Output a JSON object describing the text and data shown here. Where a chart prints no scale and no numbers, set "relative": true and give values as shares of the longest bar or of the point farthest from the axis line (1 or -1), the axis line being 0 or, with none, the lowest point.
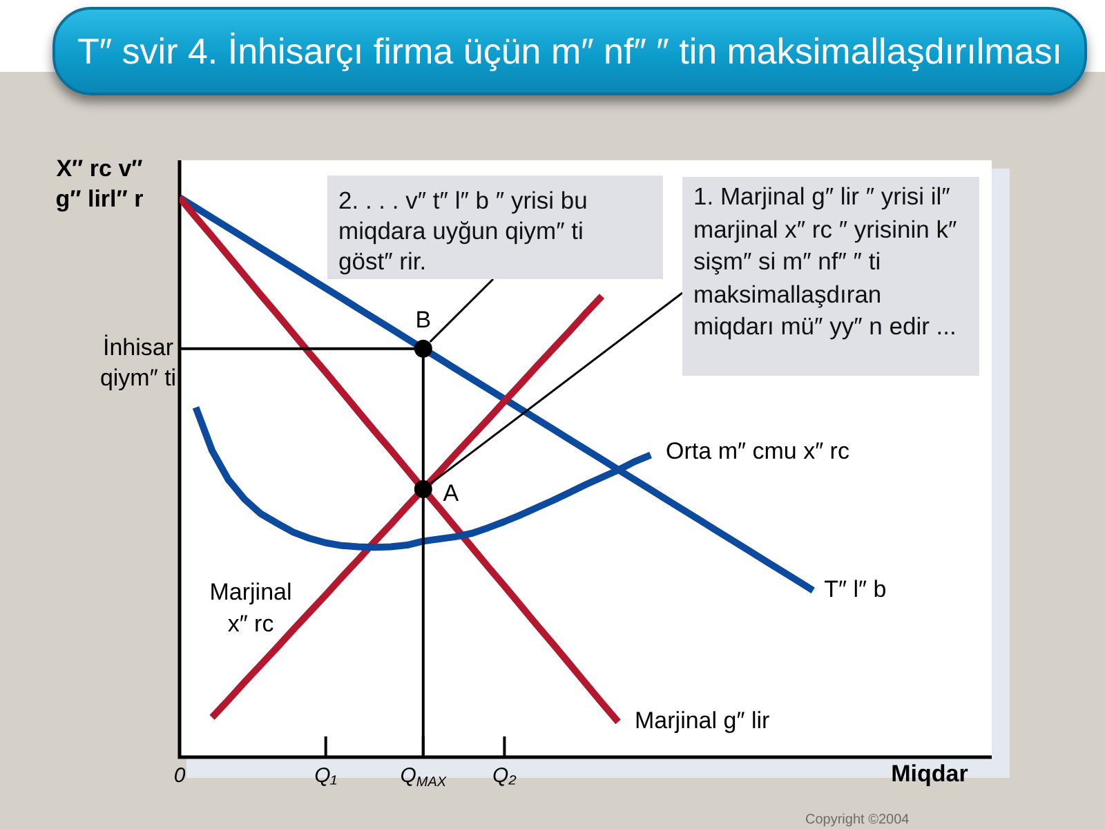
{
  "chart_data": {
    "type": "line",
    "title": "T″ svir 4. İnhisarçı firma üçün m″ nf″ ″ tin maksimallaşdırılması",
    "xlabel": "Miqdar",
    "ylabel": "X″ rc v″ g″ lirl″ r",
    "relative": true,
    "legend": false,
    "marker": "none",
    "tick_labels": "x",
    "categories": [
      "0",
      null,
      null,
      null,
      null,
      null,
      null,
      null,
      null,
      "Q₁",
      null,
      null,
      null,
      null,
      null,
      "Q$_{MAX}$",
      null,
      null,
      null,
      null,
      "Q₂",
      null,
      null,
      null,
      null,
      null,
      null,
      null,
      null,
      null,
      null,
      null,
      null,
      null,
      null,
      null,
      null,
      null,
      null,
      null,
      null,
      null,
      null,
      null,
      null,
      null,
      null,
      null,
      null,
      null,
      null
    ],
    "series": [
      {
        "name": "T″ l″ b",
        "color": "#0b4a9c",
        "values": [
          1,
          0.982,
          0.964,
          0.946,
          0.928,
          0.91,
          0.892,
          0.874,
          0.856,
          0.838,
          0.82,
          0.802,
          0.784,
          0.766,
          0.748,
          0.73,
          0.712,
          0.694,
          0.676,
          0.658,
          0.64,
          0.622,
          0.604,
          0.586,
          0.568,
          0.55,
          0.532,
          0.514,
          0.496,
          0.478,
          0.46,
          0.442,
          0.424,
          0.406,
          0.388,
          0.37,
          0.352,
          0.334,
          0.316,
          0.298,
          null,
          null,
          null,
          null,
          null,
          null,
          null,
          null,
          null,
          null,
          null
        ]
      },
      {
        "name": "Marjinal g″ lir",
        "color": "#b3182f",
        "values": [
          1,
          0.965,
          0.931,
          0.896,
          0.861,
          0.826,
          0.792,
          0.757,
          0.722,
          0.688,
          0.653,
          0.618,
          0.583,
          0.549,
          0.514,
          0.479,
          0.445,
          0.41,
          0.375,
          0.34,
          0.306,
          0.271,
          0.236,
          0.202,
          0.167,
          0.132,
          0.097,
          0.063,
          null,
          null,
          null,
          null,
          null,
          null,
          null,
          null,
          null,
          null,
          null,
          null,
          null,
          null,
          null,
          null,
          null,
          null,
          null,
          null,
          null,
          null,
          null
        ]
      },
      {
        "name": "Marjinal x″ rc",
        "color": "#b3182f",
        "values": [
          null,
          null,
          0.071,
          0.102,
          0.134,
          0.165,
          0.196,
          0.228,
          0.259,
          0.29,
          0.322,
          0.353,
          0.385,
          0.416,
          0.448,
          0.479,
          0.51,
          0.542,
          0.573,
          0.604,
          0.636,
          0.667,
          0.699,
          0.73,
          0.761,
          0.793,
          0.824,
          null,
          null,
          null,
          null,
          null,
          null,
          null,
          null,
          null,
          null,
          null,
          null,
          null,
          null,
          null,
          null,
          null,
          null,
          null,
          null,
          null,
          null,
          null,
          null
        ]
      },
      {
        "name": "Orta m″ cmu x″ rc",
        "color": "#0b4a9c",
        "values": [
          null,
          0.625,
          0.548,
          0.496,
          0.461,
          0.435,
          0.418,
          0.402,
          0.391,
          0.383,
          0.378,
          0.376,
          0.375,
          0.376,
          0.379,
          0.386,
          0.39,
          0.394,
          0.4,
          0.41,
          0.421,
          0.433,
          0.446,
          0.459,
          0.473,
          0.487,
          0.5,
          0.513,
          0.528,
          0.54,
          null,
          null,
          null,
          null,
          null,
          null,
          null,
          null,
          null,
          null,
          null,
          null,
          null,
          null,
          null,
          null,
          null,
          null,
          null,
          null,
          null
        ]
      },
      {
        "color": "#000000",
        "x": [
          "0",
          "Q$_{MAX}$",
          "Q$_{MAX}$"
        ],
        "values": [
          0.73,
          0.73,
          0
        ]
      },
      {
        "type": "scatter",
        "color": "#000000",
        "marker": "circle",
        "x": [
          "Q$_{MAX}$",
          "Q$_{MAX}$"
        ],
        "values": [
          0.479,
          0.73
        ]
      }
    ],
    "annotations": [
      {
        "text": "B",
        "x": "Q$_{MAX}$",
        "y": 0.73
      },
      {
        "text": "A",
        "x": "Q$_{MAX}$",
        "y": 0.479
      },
      {
        "text": "2. . . . v″ t″ l″ b ″ yrisi bu miqdara uyğun qiym″ ti göst″ rir.",
        "x": "Q$_{MAX}$",
        "y": 0.73
      },
      {
        "text": "1. Marjinal g″ lir ″ yrisi il″ marjinal x″ rc ″ yrisinin k″ sişm″ si m″ nf″ ″ ti maksimallaşdıran miqdarı mü″ yy″ n edir ...",
        "x": "Q$_{MAX}$",
        "y": 0.479
      },
      {
        "text": "İnhisar qiym″ ti",
        "x": "0",
        "y": 0.73
      },
      "Copyright ©2004"
    ]
  }
}
